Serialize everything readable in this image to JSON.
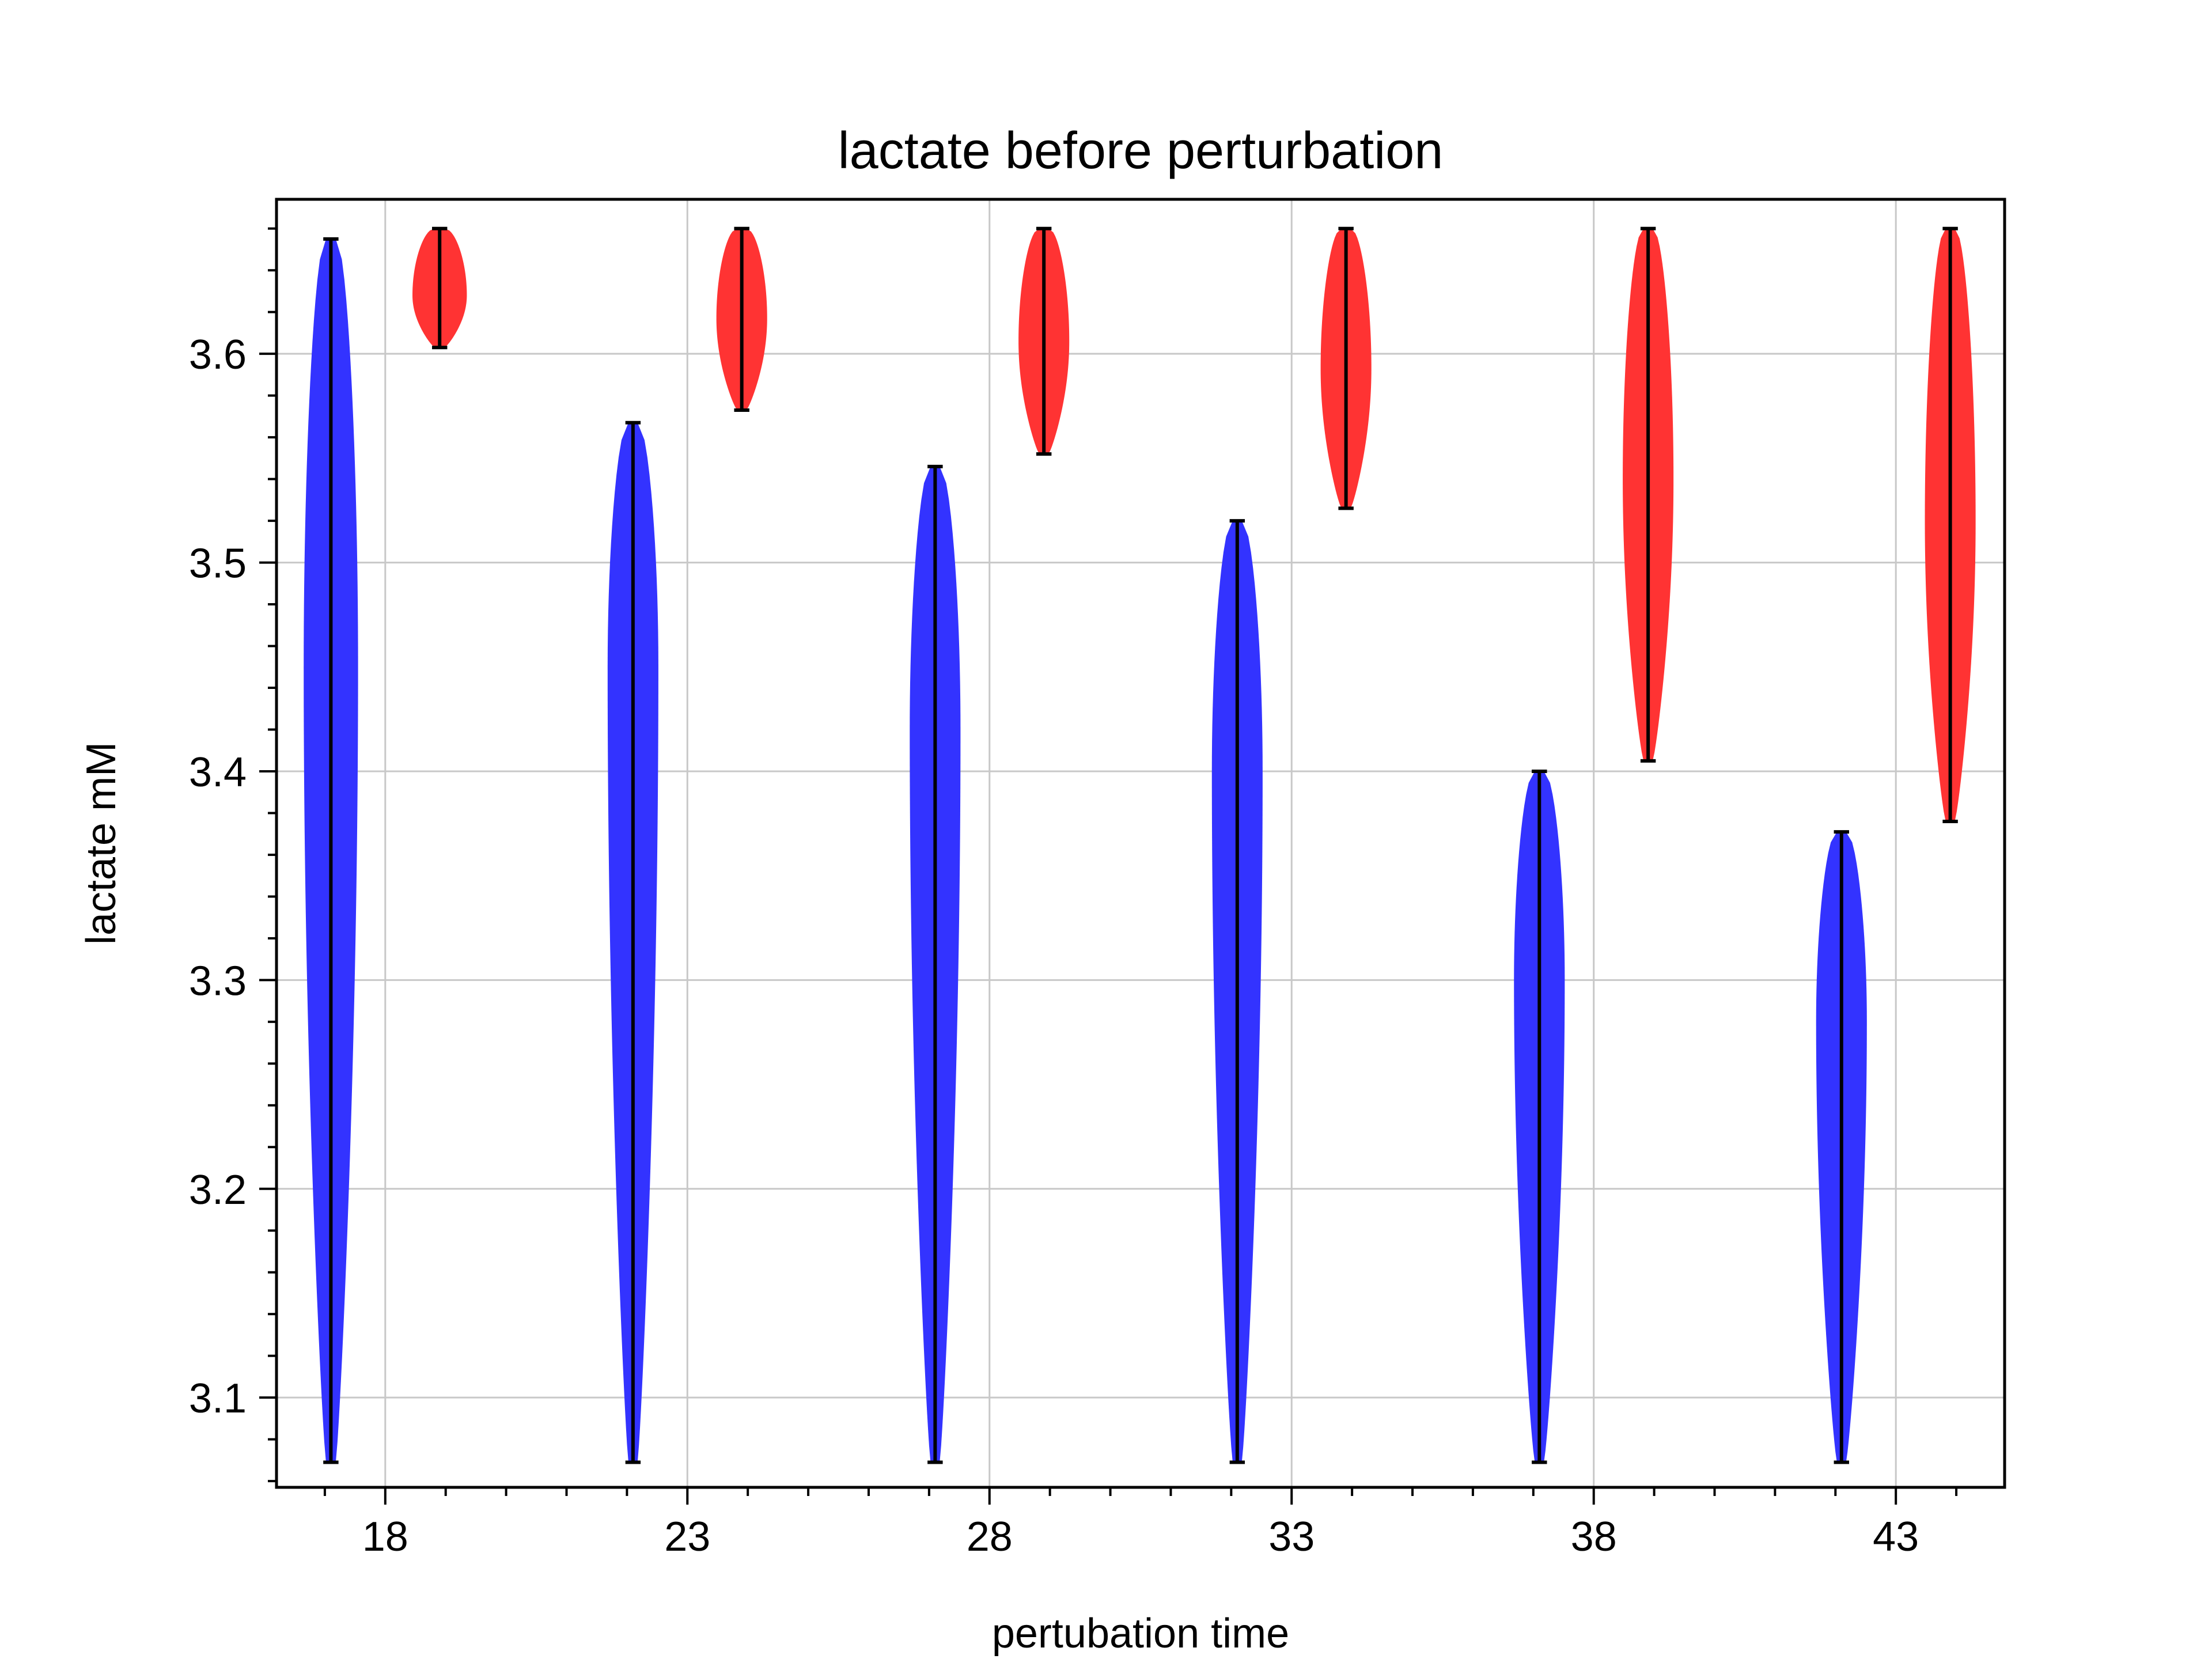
{
  "chart_data": {
    "type": "violin",
    "title": "lactate before perturbation",
    "xlabel": "pertubation time",
    "ylabel": "lactate mM",
    "xlim": [
      16.2,
      44.8
    ],
    "ylim": [
      3.057,
      3.674
    ],
    "xticks": [
      18,
      23,
      28,
      33,
      38,
      43
    ],
    "xtick_labels": [
      "18",
      "23",
      "28",
      "33",
      "38",
      "43"
    ],
    "yticks": [
      3.1,
      3.2,
      3.3,
      3.4,
      3.5,
      3.6
    ],
    "ytick_labels": [
      "3.1",
      "3.2",
      "3.3",
      "3.4",
      "3.5",
      "3.6"
    ],
    "grid": true,
    "series": [
      {
        "color": "#3333ff",
        "violins": [
          {
            "x": 17.1,
            "min": 3.069,
            "max": 3.655,
            "widest_y": 3.45,
            "half_width": 0.45
          },
          {
            "x": 22.1,
            "min": 3.069,
            "max": 3.567,
            "widest_y": 3.45,
            "half_width": 0.42
          },
          {
            "x": 27.1,
            "min": 3.069,
            "max": 3.546,
            "widest_y": 3.42,
            "half_width": 0.42
          },
          {
            "x": 32.1,
            "min": 3.069,
            "max": 3.52,
            "widest_y": 3.4,
            "half_width": 0.42
          },
          {
            "x": 37.1,
            "min": 3.069,
            "max": 3.4,
            "widest_y": 3.3,
            "half_width": 0.42
          },
          {
            "x": 42.1,
            "min": 3.069,
            "max": 3.371,
            "widest_y": 3.28,
            "half_width": 0.42
          }
        ]
      },
      {
        "color": "#ff3333",
        "violins": [
          {
            "x": 18.9,
            "min": 3.603,
            "max": 3.66,
            "widest_y": 3.628,
            "half_width": 0.45
          },
          {
            "x": 23.9,
            "min": 3.573,
            "max": 3.66,
            "widest_y": 3.617,
            "half_width": 0.42
          },
          {
            "x": 28.9,
            "min": 3.552,
            "max": 3.66,
            "widest_y": 3.606,
            "half_width": 0.42
          },
          {
            "x": 33.9,
            "min": 3.526,
            "max": 3.66,
            "widest_y": 3.593,
            "half_width": 0.42
          },
          {
            "x": 38.9,
            "min": 3.405,
            "max": 3.66,
            "widest_y": 3.54,
            "half_width": 0.42
          },
          {
            "x": 43.9,
            "min": 3.376,
            "max": 3.66,
            "widest_y": 3.52,
            "half_width": 0.42
          }
        ]
      }
    ]
  }
}
